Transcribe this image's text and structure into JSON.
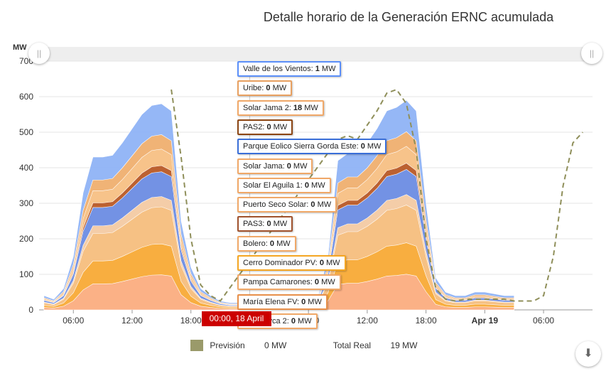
{
  "chart_data": {
    "type": "area",
    "title": "Detalle horario de la Generación ERNC acumulada",
    "ylabel": "MW",
    "ylim": [
      0,
      700
    ],
    "yticks": [
      0,
      100,
      200,
      300,
      400,
      500,
      600,
      700
    ],
    "xticks": [
      {
        "h": 6,
        "label": "06:00"
      },
      {
        "h": 12,
        "label": "12:00"
      },
      {
        "h": 18,
        "label": "18:00"
      },
      {
        "h": 30,
        "label": "06:00"
      },
      {
        "h": 36,
        "label": "12:00"
      },
      {
        "h": 42,
        "label": "18:00"
      },
      {
        "h": 48,
        "label": "Apr 19"
      },
      {
        "h": 54,
        "label": "06:00"
      }
    ],
    "x_hours": [
      3,
      4,
      5,
      6,
      7,
      8,
      9,
      10,
      11,
      12,
      13,
      14,
      15,
      16,
      17,
      18,
      19,
      20,
      21,
      22,
      23,
      24,
      25,
      26,
      27,
      28,
      29,
      30,
      31,
      32,
      33,
      34,
      35,
      36,
      37,
      38,
      39,
      40,
      41,
      42,
      43,
      44,
      45,
      46,
      47,
      48,
      49,
      50,
      51
    ],
    "stacked_totals": [
      40,
      30,
      60,
      150,
      330,
      430,
      430,
      435,
      470,
      510,
      550,
      575,
      580,
      560,
      250,
      120,
      60,
      40,
      25,
      20,
      20,
      20,
      20,
      20,
      20,
      20,
      30,
      40,
      40,
      150,
      420,
      440,
      440,
      470,
      510,
      560,
      570,
      590,
      560,
      300,
      90,
      50,
      40,
      40,
      50,
      50,
      45,
      40,
      40
    ],
    "forecast": {
      "name": "Previsión",
      "x_hours": [
        16,
        17,
        18,
        19,
        20,
        21,
        33,
        34,
        35,
        36,
        37,
        38,
        39,
        40,
        41,
        42,
        43,
        44,
        45,
        46,
        47,
        48,
        49,
        50,
        51,
        52,
        53,
        54,
        55,
        56,
        57,
        58
      ],
      "values": [
        620,
        430,
        200,
        70,
        40,
        25,
        480,
        490,
        480,
        520,
        560,
        610,
        620,
        580,
        450,
        200,
        60,
        30,
        25,
        30,
        30,
        30,
        30,
        30,
        25,
        25,
        25,
        40,
        150,
        350,
        470,
        500
      ]
    },
    "crosshair_label": "00:00, 18 April",
    "tooltip": [
      {
        "name": "Valle de los Vientos",
        "value": "1",
        "unit": "MW",
        "color": "#5b8ff9"
      },
      {
        "name": "Uribe",
        "value": "0",
        "unit": "MW",
        "color": "#e8a060"
      },
      {
        "name": "Solar Jama 2",
        "value": "18",
        "unit": "MW",
        "color": "#f0a868"
      },
      {
        "name": "PAS2",
        "value": "0",
        "unit": "MW",
        "color": "#8b4513"
      },
      {
        "name": "Parque Eolico Sierra Gorda Este",
        "value": "0",
        "unit": "MW",
        "color": "#3a6fd8"
      },
      {
        "name": "Solar Jama",
        "value": "0",
        "unit": "MW",
        "color": "#f0a868"
      },
      {
        "name": "Solar El Aguila 1",
        "value": "0",
        "unit": "MW",
        "color": "#f0a868"
      },
      {
        "name": "Puerto Seco Solar",
        "value": "0",
        "unit": "MW",
        "color": "#f0a868"
      },
      {
        "name": "PAS3",
        "value": "0",
        "unit": "MW",
        "color": "#a0522d"
      },
      {
        "name": "Bolero",
        "value": "0",
        "unit": "MW",
        "color": "#f0a868"
      },
      {
        "name": "Cerro Dominador PV",
        "value": "0",
        "unit": "MW",
        "color": "#f5a623"
      },
      {
        "name": "Pampa Camarones",
        "value": "0",
        "unit": "MW",
        "color": "#f0a868"
      },
      {
        "name": "María Elena FV",
        "value": "0",
        "unit": "MW",
        "color": "#e8904a"
      },
      {
        "name": "La Huayca 2",
        "value": "0",
        "unit": "MW",
        "color": "#f0a868"
      }
    ]
  },
  "legend": {
    "forecast_label": "Previsión",
    "forecast_value": "0 MW",
    "total_label": "Total Real",
    "total_value": "19 MW",
    "forecast_color": "#9a9a6a"
  },
  "controls": {
    "download_icon": "download-icon",
    "navigator_handle_icon": "drag-handle-icon"
  }
}
